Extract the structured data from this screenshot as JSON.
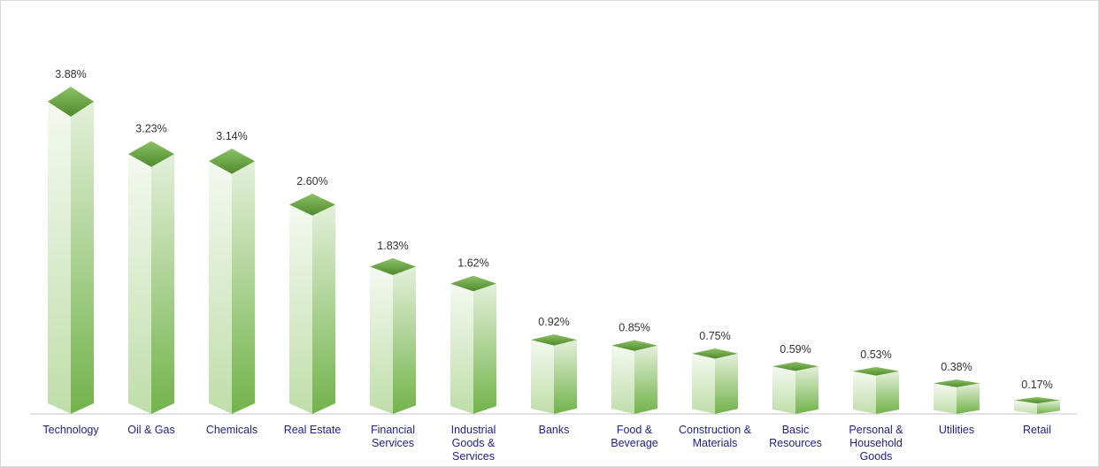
{
  "chart_data": {
    "type": "bar",
    "title": "",
    "xlabel": "",
    "ylabel": "",
    "ylim": [
      0,
      4
    ],
    "grid": false,
    "categories": [
      [
        "Technology"
      ],
      [
        "Oil & Gas"
      ],
      [
        "Chemicals"
      ],
      [
        "Real Estate"
      ],
      [
        "Financial",
        "Services"
      ],
      [
        "Industrial",
        "Goods &",
        "Services"
      ],
      [
        "Banks"
      ],
      [
        "Food &",
        "Beverage"
      ],
      [
        "Construction &",
        "Materials"
      ],
      [
        "Basic",
        "Resources"
      ],
      [
        "Personal &",
        "Household",
        "Goods"
      ],
      [
        "Utilities"
      ],
      [
        "Retail"
      ]
    ],
    "values": [
      3.88,
      3.23,
      3.14,
      2.6,
      1.83,
      1.62,
      0.92,
      0.85,
      0.75,
      0.59,
      0.53,
      0.38,
      0.17
    ],
    "data_labels": [
      "3.88%",
      "3.23%",
      "3.14%",
      "2.60%",
      "1.83%",
      "1.62%",
      "0.92%",
      "0.85%",
      "0.75%",
      "0.59%",
      "0.53%",
      "0.38%",
      "0.17%"
    ],
    "colors": {
      "top": "#6aab3e",
      "side_dark": "#7cb85a",
      "side_light": "#c8e2b8",
      "axis": "#d9d9d9"
    }
  }
}
